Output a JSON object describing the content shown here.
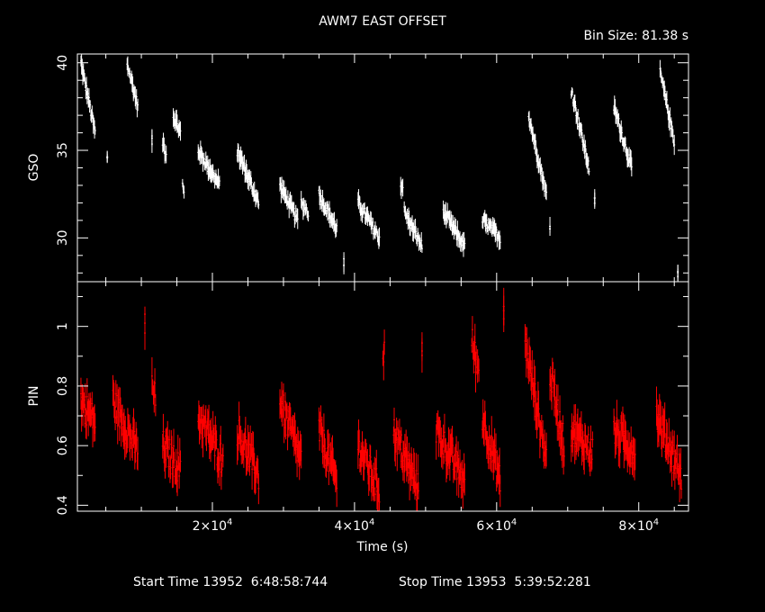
{
  "title": "AWM7 EAST OFFSET",
  "bin_size_label": "Bin Size:  81.38 s",
  "footer": {
    "start_label": "Start Time 13952  6:48:58:744",
    "stop_label": "Stop Time 13953  5:39:52:281"
  },
  "colors": {
    "background": "#000000",
    "axes": "#ffffff",
    "gso": "#ffffff",
    "pin": "#ff0000"
  },
  "chart_data": [
    {
      "type": "line",
      "ylabel": "GSO",
      "xlim": [
        1000,
        87000
      ],
      "ylim": [
        27.5,
        40.5
      ],
      "yticks": [
        30,
        35,
        40
      ],
      "yticklabels": [
        "30",
        "35",
        "40"
      ],
      "style": "error-bar",
      "series": [
        {
          "segments": [
            {
              "x": [
                1500,
                3500
              ],
              "y": [
                40.0,
                36.0
              ]
            },
            {
              "x": [
                5200,
                5200
              ],
              "y": [
                34.5,
                34.5
              ]
            },
            {
              "x": [
                8000,
                9500
              ],
              "y": [
                40.0,
                37.5
              ]
            },
            {
              "x": [
                11500,
                11500
              ],
              "y": [
                35.5,
                35.5
              ]
            },
            {
              "x": [
                13000,
                13500
              ],
              "y": [
                35.5,
                34.8
              ]
            },
            {
              "x": [
                14500,
                15500
              ],
              "y": [
                37.0,
                36.0
              ]
            },
            {
              "x": [
                15800,
                16000
              ],
              "y": [
                33.0,
                32.5
              ]
            },
            {
              "x": [
                18000,
                21000
              ],
              "y": [
                35.0,
                33.0
              ]
            },
            {
              "x": [
                23500,
                26500
              ],
              "y": [
                35.0,
                32.0
              ]
            },
            {
              "x": [
                29500,
                32000
              ],
              "y": [
                33.0,
                31.0
              ]
            },
            {
              "x": [
                32500,
                33500
              ],
              "y": [
                32.0,
                31.5
              ]
            },
            {
              "x": [
                35000,
                37500
              ],
              "y": [
                32.5,
                30.5
              ]
            },
            {
              "x": [
                38500,
                38500
              ],
              "y": [
                28.5,
                28.5
              ]
            },
            {
              "x": [
                40500,
                43500
              ],
              "y": [
                32.0,
                30.0
              ]
            },
            {
              "x": [
                46500,
                46800
              ],
              "y": [
                33.0,
                33.0
              ]
            },
            {
              "x": [
                47000,
                49500
              ],
              "y": [
                31.5,
                29.5
              ]
            },
            {
              "x": [
                52500,
                55500
              ],
              "y": [
                31.5,
                29.5
              ]
            },
            {
              "x": [
                58000,
                60500
              ],
              "y": [
                31.0,
                30.0
              ]
            },
            {
              "x": [
                64500,
                67000
              ],
              "y": [
                37.0,
                32.5
              ]
            },
            {
              "x": [
                67500,
                67500
              ],
              "y": [
                30.5,
                30.5
              ]
            },
            {
              "x": [
                70500,
                73000
              ],
              "y": [
                38.5,
                34.0
              ]
            },
            {
              "x": [
                73800,
                73800
              ],
              "y": [
                32.0,
                32.0
              ]
            },
            {
              "x": [
                76500,
                79000
              ],
              "y": [
                37.5,
                34.0
              ]
            },
            {
              "x": [
                83000,
                85000
              ],
              "y": [
                39.5,
                35.5
              ]
            },
            {
              "x": [
                85500,
                85500
              ],
              "y": [
                28.0,
                28.0
              ]
            }
          ]
        }
      ]
    },
    {
      "type": "line",
      "ylabel": "PIN",
      "xlabel": "Time (s)",
      "xlim": [
        1000,
        87000
      ],
      "ylim": [
        0.38,
        1.15
      ],
      "xticks": [
        20000,
        40000,
        60000,
        80000
      ],
      "xticklabels": [
        "2×10",
        "4×10",
        "6×10",
        "8×10"
      ],
      "xtick_exponent": "4",
      "yticks": [
        0.4,
        0.6,
        0.8,
        1.0
      ],
      "yticklabels": [
        "0.4",
        "0.6",
        "0.8",
        "1"
      ],
      "style": "error-bar",
      "series": [
        {
          "segments": [
            {
              "x": [
                1500,
                3500
              ],
              "y": [
                0.75,
                0.68
              ]
            },
            {
              "x": [
                6000,
                9500
              ],
              "y": [
                0.75,
                0.58
              ]
            },
            {
              "x": [
                10500,
                10500
              ],
              "y": [
                1.0,
                1.0
              ]
            },
            {
              "x": [
                11500,
                12000
              ],
              "y": [
                0.8,
                0.75
              ]
            },
            {
              "x": [
                13000,
                15500
              ],
              "y": [
                0.6,
                0.52
              ]
            },
            {
              "x": [
                18000,
                21500
              ],
              "y": [
                0.7,
                0.55
              ]
            },
            {
              "x": [
                23500,
                26500
              ],
              "y": [
                0.65,
                0.5
              ]
            },
            {
              "x": [
                29500,
                32500
              ],
              "y": [
                0.75,
                0.55
              ]
            },
            {
              "x": [
                35000,
                37500
              ],
              "y": [
                0.65,
                0.48
              ]
            },
            {
              "x": [
                40500,
                43500
              ],
              "y": [
                0.6,
                0.45
              ]
            },
            {
              "x": [
                44000,
                44200
              ],
              "y": [
                0.92,
                0.92
              ]
            },
            {
              "x": [
                45500,
                49000
              ],
              "y": [
                0.65,
                0.45
              ]
            },
            {
              "x": [
                49500,
                49500
              ],
              "y": [
                0.95,
                0.95
              ]
            },
            {
              "x": [
                51500,
                55500
              ],
              "y": [
                0.65,
                0.48
              ]
            },
            {
              "x": [
                56500,
                57500
              ],
              "y": [
                0.95,
                0.85
              ]
            },
            {
              "x": [
                58000,
                60500
              ],
              "y": [
                0.7,
                0.48
              ]
            },
            {
              "x": [
                61000,
                61000
              ],
              "y": [
                1.05,
                1.05
              ]
            },
            {
              "x": [
                64000,
                67000
              ],
              "y": [
                0.95,
                0.55
              ]
            },
            {
              "x": [
                67500,
                69500
              ],
              "y": [
                0.85,
                0.6
              ]
            },
            {
              "x": [
                70500,
                73500
              ],
              "y": [
                0.65,
                0.58
              ]
            },
            {
              "x": [
                76500,
                79500
              ],
              "y": [
                0.65,
                0.58
              ]
            },
            {
              "x": [
                82500,
                86000
              ],
              "y": [
                0.7,
                0.5
              ]
            }
          ]
        }
      ]
    }
  ]
}
